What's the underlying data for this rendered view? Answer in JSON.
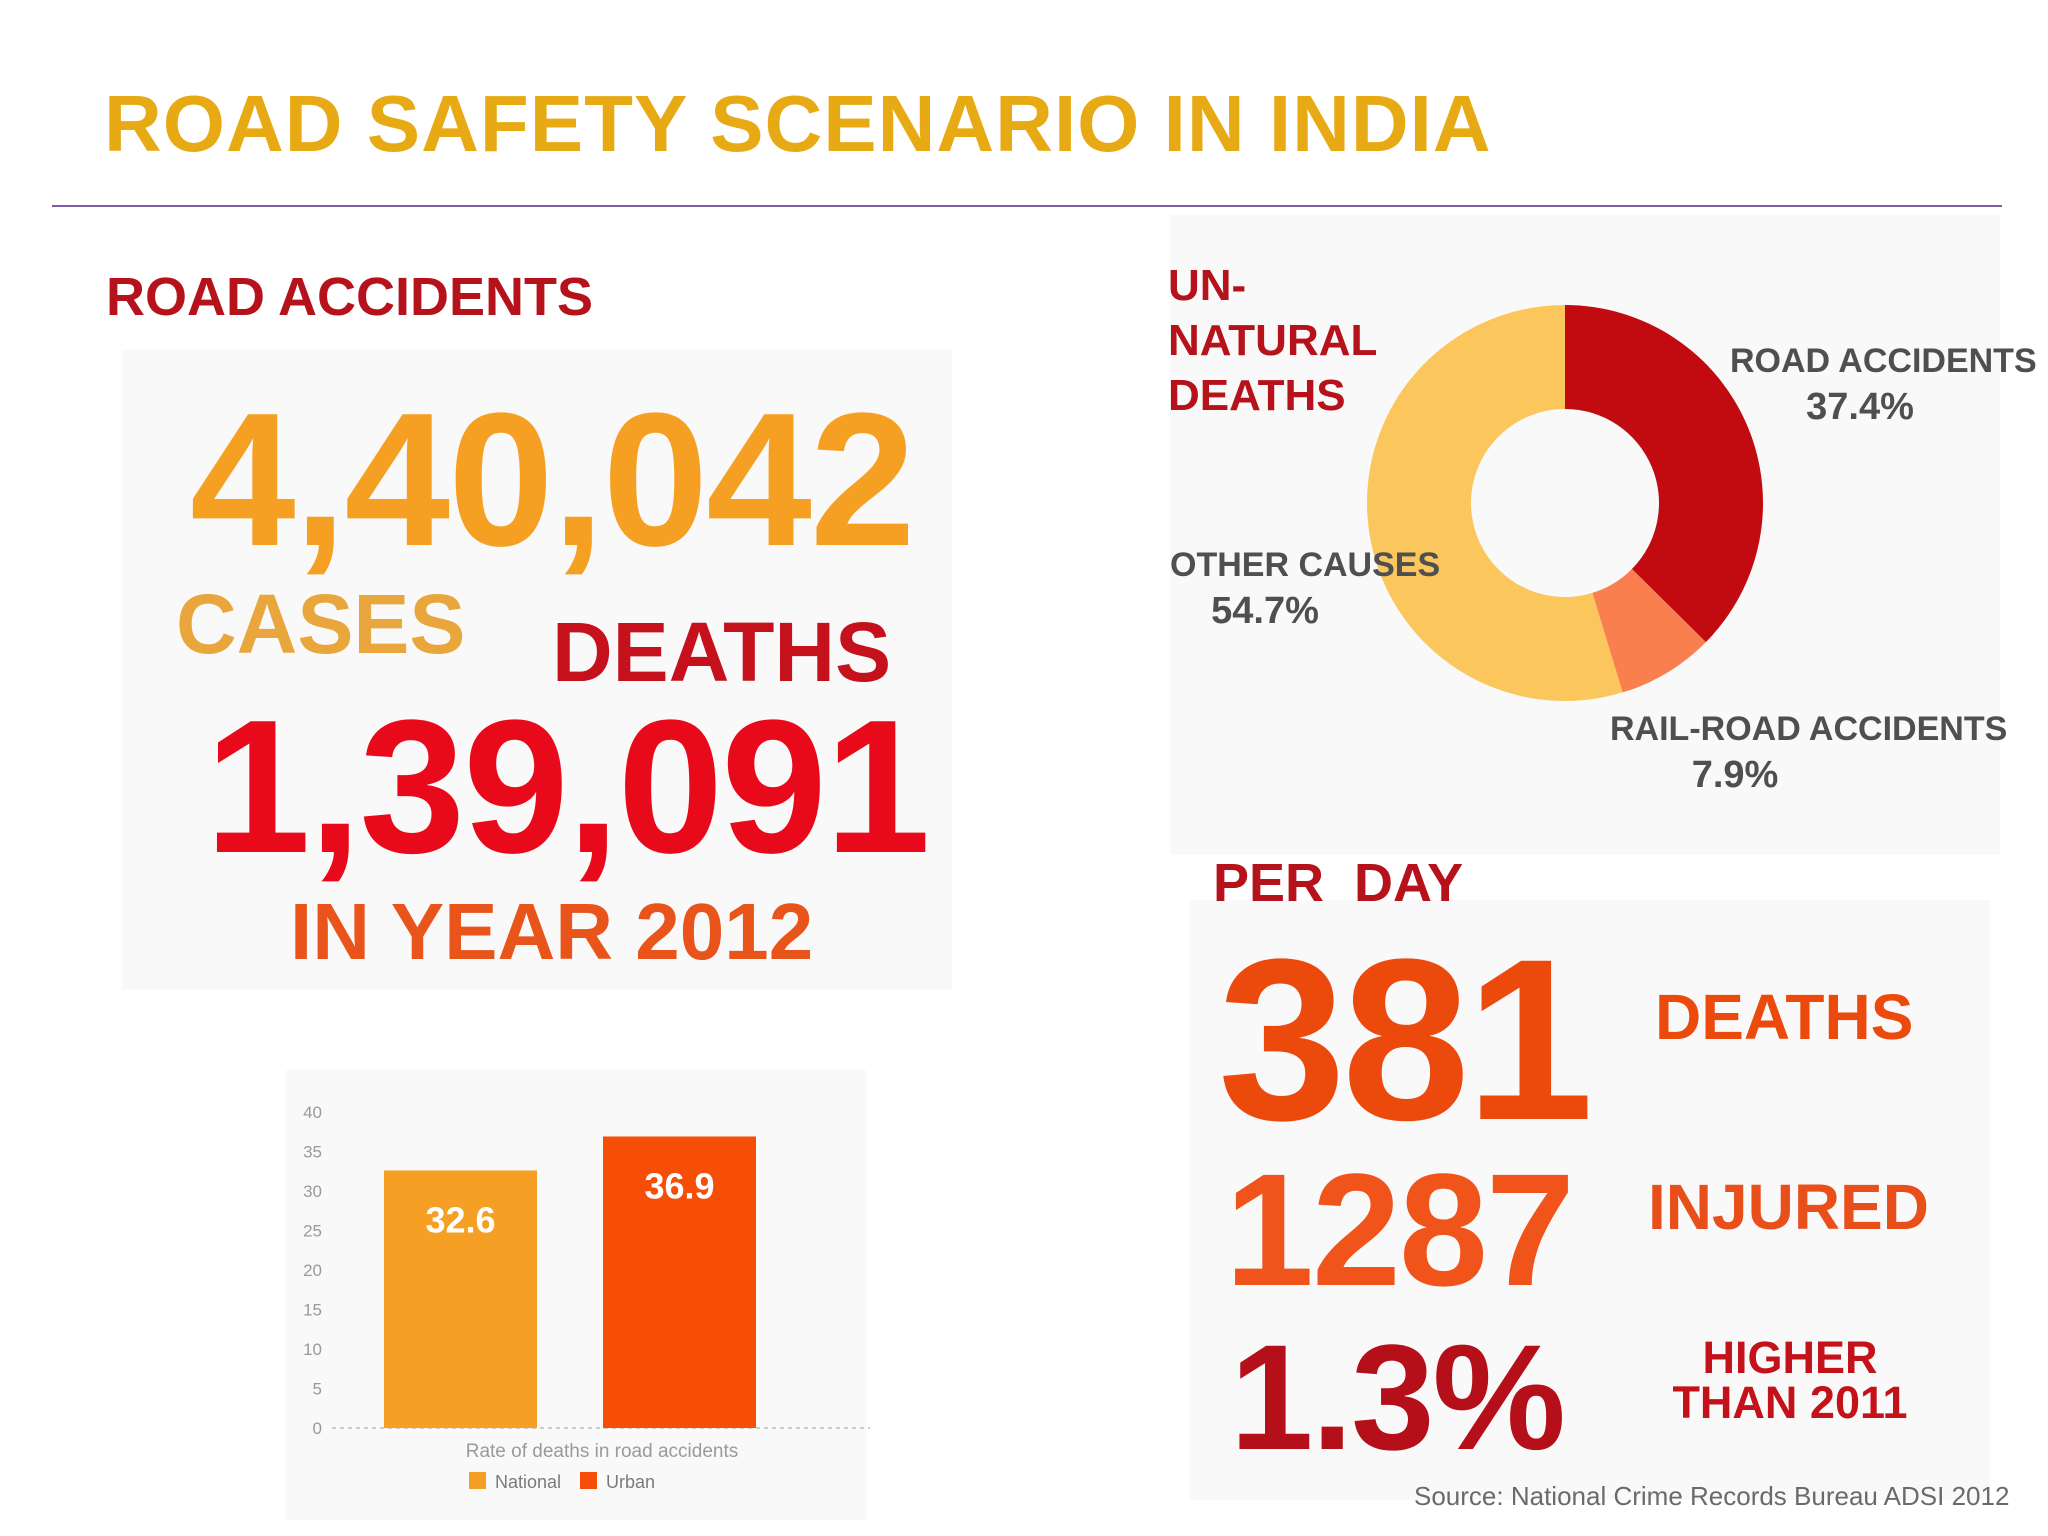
{
  "title": "ROAD SAFETY SCENARIO IN INDIA",
  "left_section": {
    "heading": "ROAD ACCIDENTS",
    "cases_number": "4,40,042",
    "cases_label": "CASES",
    "deaths_label": "DEATHS",
    "deaths_number": "1,39,091",
    "year_label": "IN YEAR 2012"
  },
  "pie_section": {
    "heading": "UN-NATURAL DEATHS",
    "labels": {
      "road": {
        "name": "ROAD ACCIDENTS",
        "pct": "37.4%"
      },
      "rail": {
        "name": "RAIL-ROAD ACCIDENTS",
        "pct": "7.9%"
      },
      "other": {
        "name": "OTHER CAUSES",
        "pct": "54.7%"
      }
    }
  },
  "per_day": {
    "heading": "PER  DAY",
    "deaths_number": "381",
    "deaths_label": "DEATHS",
    "injured_number": "1287",
    "injured_label": "INJURED",
    "change_number": "1.3%",
    "change_label": "HIGHER THAN 2011"
  },
  "source": "Source: National Crime Records Bureau ADSI 2012",
  "colors": {
    "title": "#e8aa14",
    "heading_red": "#b5121b",
    "pie_road": "#c10b10",
    "pie_rail": "#f97f4f",
    "pie_other": "#fbc65c",
    "bar_national": "#f5a024",
    "bar_urban": "#f64d07"
  },
  "chart_data": [
    {
      "type": "pie",
      "title": "UN-NATURAL DEATHS",
      "categories": [
        "ROAD ACCIDENTS",
        "RAIL-ROAD ACCIDENTS",
        "OTHER CAUSES"
      ],
      "values": [
        37.4,
        7.9,
        54.7
      ],
      "value_labels": [
        "37.4%",
        "7.9%",
        "54.7%"
      ],
      "colors": [
        "#c10b10",
        "#f97f4f",
        "#fbc65c"
      ],
      "donut": true
    },
    {
      "type": "bar",
      "xlabel": "Rate of deaths  in road accidents",
      "categories": [
        "National",
        "Urban"
      ],
      "values": [
        32.6,
        36.9
      ],
      "value_labels": [
        "32.6",
        "36.9"
      ],
      "colors": [
        "#f5a024",
        "#f64d07"
      ],
      "ylim": [
        0,
        40
      ],
      "yticks": [
        "0",
        "5",
        "10",
        "15",
        "20",
        "25",
        "30",
        "35",
        "40"
      ],
      "legend": [
        "National",
        "Urban"
      ],
      "legend_position": "bottom",
      "grid": false
    }
  ]
}
